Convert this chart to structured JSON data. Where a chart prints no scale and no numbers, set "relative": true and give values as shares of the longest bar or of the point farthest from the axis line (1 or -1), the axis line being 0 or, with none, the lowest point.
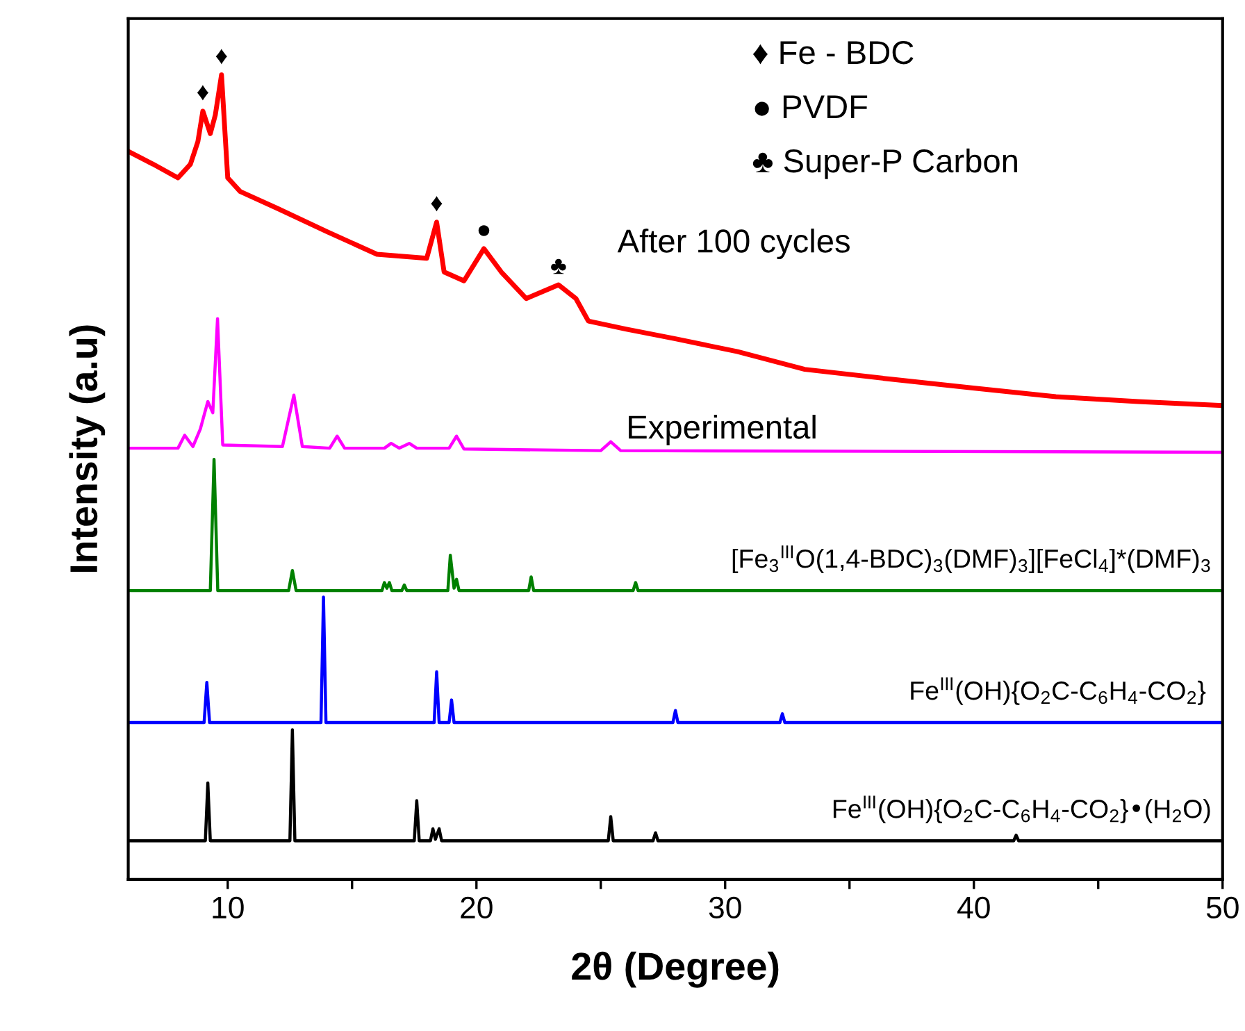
{
  "chart_data": {
    "type": "line",
    "relative": true,
    "xlabel": "2θ (Degree)",
    "ylabel": "Intensity (a.u)",
    "xlim": [
      6,
      50
    ],
    "xticks": [
      10,
      {
        "value": 15,
        "label": null
      },
      20,
      {
        "value": 25,
        "label": null
      },
      30,
      {
        "value": 35,
        "label": null
      },
      40,
      {
        "value": 45,
        "label": null
      },
      50
    ],
    "grid": false,
    "legend": false,
    "series": [
      {
        "name": "After 100 cycles",
        "color": "#ff0000",
        "x": [
          6,
          7,
          8,
          8.5,
          8.8,
          9.0,
          9.3,
          9.5,
          9.75,
          10.0,
          10.5,
          12,
          14,
          16,
          18,
          18.4,
          18.7,
          19.5,
          20.3,
          21,
          22,
          23.3,
          24,
          24.5,
          26,
          28,
          30.5,
          33.2,
          36.6,
          39.9,
          43.3,
          46.6,
          50
        ],
        "values": [
          0.905,
          0.889,
          0.872,
          0.889,
          0.917,
          0.955,
          0.927,
          0.95,
          1.0,
          0.872,
          0.855,
          0.834,
          0.805,
          0.777,
          0.772,
          0.817,
          0.755,
          0.744,
          0.784,
          0.755,
          0.722,
          0.739,
          0.722,
          0.694,
          0.684,
          0.672,
          0.656,
          0.634,
          0.622,
          0.611,
          0.6,
          0.594,
          0.589
        ]
      },
      {
        "name": "Experimental",
        "color": "#ff00ff",
        "x": [
          6,
          8.0,
          8.27,
          8.6,
          8.9,
          9.2,
          9.4,
          9.59,
          9.8,
          12.2,
          12.66,
          13.0,
          14.1,
          14.4,
          14.7,
          16.3,
          16.57,
          16.9,
          17.3,
          17.6,
          18.9,
          19.2,
          19.5,
          25.0,
          25.4,
          25.8,
          50
        ],
        "values": [
          0.536,
          0.536,
          0.552,
          0.538,
          0.56,
          0.594,
          0.58,
          0.697,
          0.54,
          0.538,
          0.602,
          0.538,
          0.536,
          0.551,
          0.536,
          0.536,
          0.542,
          0.536,
          0.542,
          0.536,
          0.536,
          0.551,
          0.535,
          0.533,
          0.544,
          0.533,
          0.531
        ]
      },
      {
        "name": "[Fe$_{3}$$^{III}$O(1,4-BDC)$_{3}$(DMF)$_{3}$][FeCl$_{4}$]*(DMF)$_{3}$",
        "color": "#008000",
        "x": [
          6,
          9.3,
          9.45,
          9.6,
          12.45,
          12.6,
          12.75,
          16.2,
          16.3,
          16.4,
          16.5,
          16.6,
          17.0,
          17.1,
          17.2,
          18.85,
          18.95,
          19.1,
          19.2,
          19.3,
          22.1,
          22.2,
          22.3,
          26.3,
          26.4,
          26.5,
          50
        ],
        "values": [
          0.359,
          0.359,
          0.522,
          0.359,
          0.359,
          0.384,
          0.359,
          0.359,
          0.369,
          0.362,
          0.369,
          0.359,
          0.359,
          0.366,
          0.359,
          0.359,
          0.403,
          0.362,
          0.373,
          0.359,
          0.359,
          0.376,
          0.359,
          0.359,
          0.369,
          0.359,
          0.359
        ]
      },
      {
        "name": "Fe$^{III}$(OH){O$_{2}$C-C$_{6}$H$_{4}$-CO$_{2}$}",
        "color": "#0000ff",
        "x": [
          6,
          9.05,
          9.16,
          9.27,
          13.75,
          13.85,
          13.95,
          18.3,
          18.4,
          18.5,
          18.9,
          19.0,
          19.1,
          27.9,
          28.0,
          28.1,
          32.2,
          32.3,
          32.4,
          50
        ],
        "values": [
          0.195,
          0.195,
          0.245,
          0.195,
          0.195,
          0.351,
          0.195,
          0.195,
          0.258,
          0.195,
          0.195,
          0.223,
          0.195,
          0.195,
          0.21,
          0.195,
          0.195,
          0.206,
          0.195,
          0.195
        ]
      },
      {
        "name": "Fe$^{III}$(OH){O$_{2}$C-C$_{6}$H$_{4}$-CO$_{2}$}•(H$_{2}$O)",
        "color": "#000000",
        "x": [
          6,
          9.1,
          9.2,
          9.3,
          12.5,
          12.6,
          12.7,
          17.5,
          17.6,
          17.7,
          18.15,
          18.25,
          18.35,
          18.5,
          18.6,
          25.3,
          25.4,
          25.5,
          27.1,
          27.2,
          27.3,
          41.6,
          41.7,
          41.8,
          50
        ],
        "values": [
          0.048,
          0.048,
          0.12,
          0.048,
          0.048,
          0.186,
          0.048,
          0.048,
          0.098,
          0.048,
          0.048,
          0.063,
          0.05,
          0.063,
          0.048,
          0.048,
          0.078,
          0.048,
          0.048,
          0.058,
          0.048,
          0.048,
          0.055,
          0.048,
          0.048
        ]
      }
    ],
    "annotations": [
      {
        "text": "♦",
        "x": 9.0,
        "y": 0.955
      },
      {
        "text": "♦",
        "x": 9.75,
        "y": 1.0
      },
      {
        "text": "♦",
        "x": 18.4,
        "y": 0.817
      },
      {
        "text": "●",
        "x": 20.3,
        "y": 0.784
      },
      {
        "text": "♣",
        "x": 23.3,
        "y": 0.739
      },
      "♦ Fe - BDC",
      "● PVDF",
      "♣ Super-P Carbon"
    ]
  }
}
